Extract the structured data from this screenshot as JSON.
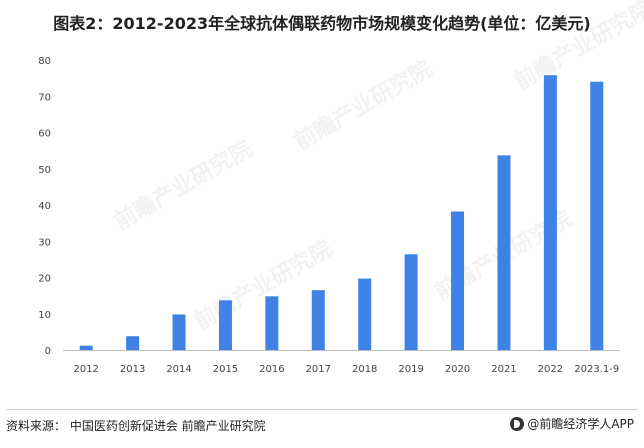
{
  "title": "图表2：2012-2023年全球抗体偶联药物市场规模变化趋势(单位：亿美元)",
  "source": "资料来源：  中国医药创新促进会 前瞻产业研究院",
  "brand": "@前瞻经济学人APP",
  "watermark": "前瞻产业研究院",
  "colors": {
    "bar": "#3f82e6",
    "axis": "#bfbfbf"
  },
  "chart_data": {
    "type": "bar",
    "title": "图表2：2012-2023年全球抗体偶联药物市场规模变化趋势(单位：亿美元)",
    "xlabel": "",
    "ylabel": "",
    "categories": [
      "2012",
      "2013",
      "2014",
      "2015",
      "2016",
      "2017",
      "2018",
      "2019",
      "2020",
      "2021",
      "2022",
      "2023.1-9"
    ],
    "values": [
      1.2,
      3.8,
      9.8,
      13.7,
      14.8,
      16.5,
      19.7,
      26.4,
      38.2,
      53.7,
      75.8,
      74.0
    ],
    "ylim": [
      0,
      80
    ],
    "yticks": [
      0,
      10,
      20,
      30,
      40,
      50,
      60,
      70,
      80
    ],
    "grid": false,
    "legend": "none"
  }
}
